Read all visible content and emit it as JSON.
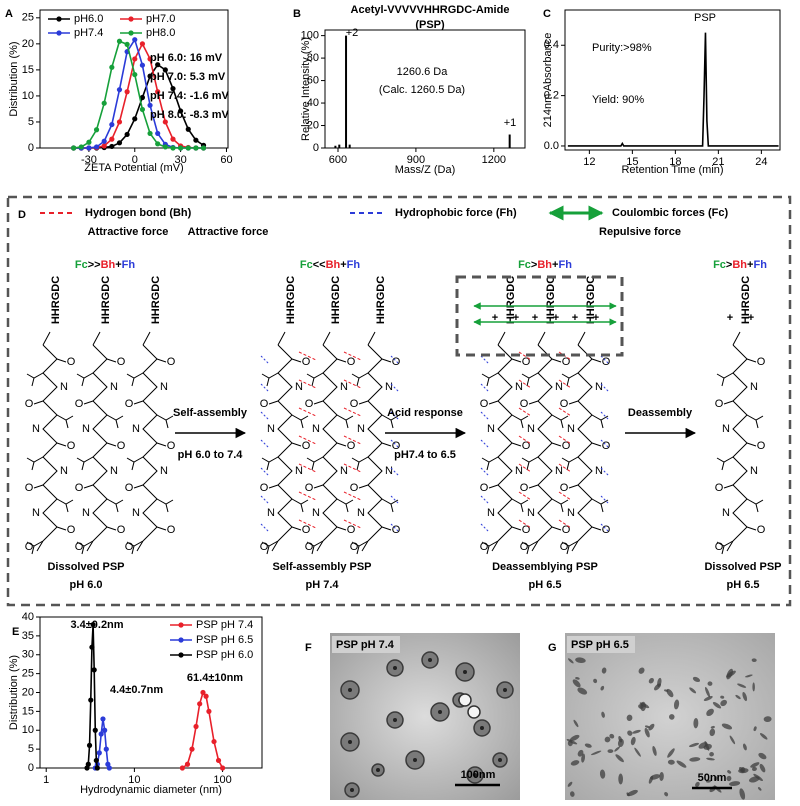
{
  "panel_labels": [
    "A",
    "B",
    "C",
    "D",
    "E",
    "F",
    "G"
  ],
  "chart_data": [
    {
      "type": "line",
      "markers": true,
      "xlabel": "ZETA Potential (mV)",
      "ylabel": "Distribution (%)",
      "xlim": [
        -62,
        61
      ],
      "ylim": [
        0,
        26.5
      ],
      "xticks": [
        -30,
        0,
        30,
        60
      ],
      "yticks": [
        0,
        5,
        10,
        15,
        20,
        25
      ],
      "legend": "upper left",
      "x": [
        -40,
        -35,
        -30,
        -25,
        -20,
        -15,
        -10,
        -5,
        0,
        5,
        10,
        15,
        20,
        25,
        30,
        35,
        40,
        45
      ],
      "series": [
        {
          "name": "pH6.0",
          "color": "#000000",
          "values": [
            0,
            0,
            0,
            0,
            0.1,
            0.3,
            1.0,
            2.6,
            5.6,
            9.7,
            13.8,
            16.0,
            15.0,
            11.4,
            7.1,
            3.6,
            1.5,
            0.5
          ]
        },
        {
          "name": "pH7.0",
          "color": "#e8202a",
          "values": [
            0,
            0,
            0,
            0.1,
            0.4,
            1.7,
            5.0,
            10.8,
            17.1,
            20,
            17.1,
            10.8,
            5.0,
            1.7,
            0.4,
            0.1,
            0,
            0
          ]
        },
        {
          "name": "pH7.4",
          "color": "#2b3bd8",
          "values": [
            0,
            0,
            0,
            0.2,
            1.3,
            4.5,
            11.2,
            18.5,
            20.8,
            15.9,
            8.2,
            2.8,
            0.7,
            0.1,
            0,
            0,
            0,
            0
          ]
        },
        {
          "name": "pH8.0",
          "color": "#16a03a",
          "values": [
            0,
            0.2,
            1.1,
            3.5,
            8.6,
            15.5,
            20.5,
            19.9,
            14.1,
            7.4,
            2.8,
            0.8,
            0.2,
            0,
            0,
            0,
            0,
            0
          ]
        }
      ],
      "annotations": [
        {
          "text": "pH 6.0: 16 mV",
          "color": "#000000"
        },
        {
          "text": "pH 7.0: 5.3 mV",
          "color": "#e8202a"
        },
        {
          "text": "pH 7.4: -1.6 mV",
          "color": "#2b3bd8"
        },
        {
          "text": "pH 8.0: -8.3 mV",
          "color": "#16a03a"
        }
      ]
    },
    {
      "type": "stem",
      "title": "Acetyl-VVVVVHHRGDC-Amide",
      "subtitle": "(PSP)",
      "xlabel": "Mass/Z (Da)",
      "ylabel": "Relative Intensity (%)",
      "xlim": [
        550,
        1320
      ],
      "ylim": [
        0,
        105
      ],
      "xticks": [
        600,
        900,
        1200
      ],
      "yticks": [
        0,
        20,
        40,
        60,
        80,
        100
      ],
      "x": [
        590,
        605,
        631,
        645,
        1261
      ],
      "series": [
        {
          "color": "#000000",
          "values": [
            2,
            3,
            100,
            3,
            12
          ]
        }
      ],
      "annotations": [
        {
          "text": "+2",
          "color": "#000000"
        },
        {
          "text": "+1",
          "color": "#000000"
        },
        {
          "text": "1260.6 Da",
          "color": "#000000"
        },
        {
          "text": "(Calc. 1260.5 Da)",
          "color": "#000000"
        }
      ]
    },
    {
      "type": "line",
      "xlabel": "Retention Time (min)",
      "ylabel": "214nm Absorbance",
      "xlim": [
        10.3,
        25.3
      ],
      "ylim": [
        -0.016,
        0.54
      ],
      "xticks": [
        12,
        15,
        18,
        21,
        24
      ],
      "yticks": [
        {
          "value": 0,
          "label": "0.0"
        },
        0.2,
        0.4
      ],
      "x": [
        10.5,
        14.2,
        14.3,
        14.4,
        19.9,
        20.0,
        20.1,
        20.2,
        20.3,
        25.2
      ],
      "series": [
        {
          "color": "#000000",
          "values": [
            0,
            0,
            0.01,
            0,
            0,
            0.2,
            0.45,
            0.1,
            0,
            0
          ]
        }
      ],
      "annotations": [
        {
          "text": "PSP",
          "color": "#000000"
        },
        {
          "text": "Purity:>98%",
          "color": "#000000"
        },
        {
          "text": "Yield: 90%",
          "color": "#000000"
        }
      ]
    },
    {
      "type": "line",
      "markers": true,
      "xscale": "log",
      "xlabel": "Hydrodynamic diameter (nm)",
      "ylabel": "Distribution (%)",
      "xlim": [
        0.85,
        280
      ],
      "ylim": [
        0,
        40
      ],
      "xticks": [
        1,
        10,
        100
      ],
      "yticks": [
        0,
        5,
        10,
        15,
        20,
        25,
        30,
        35,
        40
      ],
      "legend": "upper right",
      "series": [
        {
          "name": "PSP pH 7.4",
          "color": "#e8202a",
          "x": [
            35,
            40,
            45,
            50,
            55,
            60,
            65,
            70,
            80,
            90,
            100
          ],
          "values": [
            0,
            1,
            5,
            11,
            17,
            20,
            19,
            15,
            7,
            2,
            0
          ]
        },
        {
          "name": "PSP pH 6.5",
          "color": "#2b3bd8",
          "x": [
            3.6,
            3.8,
            4.0,
            4.2,
            4.4,
            4.6,
            4.8,
            5.0,
            5.2
          ],
          "values": [
            0,
            1,
            4,
            9,
            13,
            10,
            5,
            1,
            0
          ]
        },
        {
          "name": "PSP pH 6.0",
          "color": "#000000",
          "x": [
            2.9,
            3.0,
            3.1,
            3.2,
            3.3,
            3.4,
            3.5,
            3.6,
            3.7,
            3.8
          ],
          "values": [
            0,
            1,
            6,
            18,
            32,
            38,
            26,
            10,
            2,
            0
          ]
        }
      ],
      "annotations": [
        {
          "text": "3.4±0.2nm",
          "color": "#000000"
        },
        {
          "text": "4.4±0.7nm",
          "color": "#2b3bd8"
        },
        {
          "text": "61.4±10nm",
          "color": "#e8202a"
        }
      ]
    }
  ],
  "scheme": {
    "forces": [
      {
        "name": "Hydrogen bond (Bh)",
        "kind": "Attractive force",
        "color": "#e8202a"
      },
      {
        "name": "Hydrophobic force (Fh)",
        "kind": "Attractive force",
        "color": "#2b3bd8"
      },
      {
        "name": "Coulombic forces (Fc)",
        "kind": "Repulsive force",
        "color": "#16a03a"
      }
    ],
    "stages": [
      {
        "relation": [
          "Fc",
          ">>",
          "Bh",
          "+",
          "Fh"
        ],
        "name": "Dissolved PSP",
        "ph": "pH 6.0"
      },
      {
        "relation": [
          "Fc",
          "<<",
          "Bh",
          "+",
          "Fh"
        ],
        "name": "Self-assembly PSP",
        "ph": "pH 7.4"
      },
      {
        "relation": [
          "Fc",
          ">",
          "Bh",
          "+",
          "Fh"
        ],
        "name": "Deassemblying PSP",
        "ph": "pH 6.5"
      },
      {
        "relation": [
          "Fc",
          ">",
          "Bh",
          "+",
          "Fh"
        ],
        "name": "Dissolved PSP",
        "ph": "pH 6.5"
      }
    ],
    "steps": [
      {
        "name": "Self-assembly",
        "condition": "pH 6.0 to 7.4"
      },
      {
        "name": "Acid response",
        "condition": "pH7.4 to 6.5"
      },
      {
        "name": "Deassembly"
      }
    ],
    "peptide": "HHRGDC",
    "atoms": {
      "nitrogen": "N",
      "oxygen": "O",
      "charge": "+"
    }
  },
  "images": [
    {
      "label": "PSP pH 7.4",
      "scale_bar": "100nm"
    },
    {
      "label": "PSP pH 6.5",
      "scale_bar": "50nm"
    }
  ]
}
